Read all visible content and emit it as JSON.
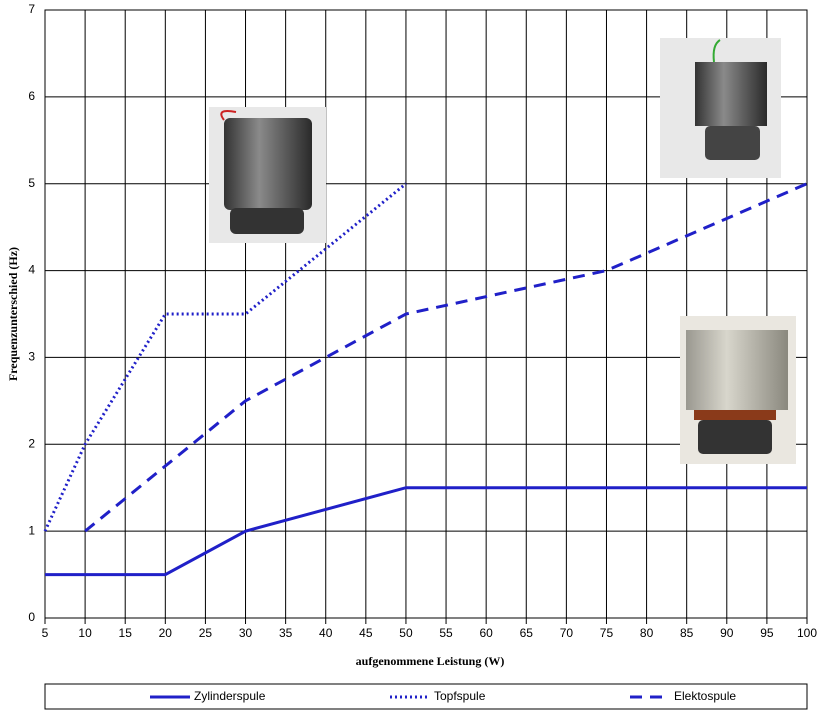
{
  "chart_data": {
    "type": "line",
    "x_label": "aufgenommene Leistung (W)",
    "y_label": "Frequenzunterschied (Hz)",
    "x": [
      5,
      10,
      20,
      30,
      50,
      75,
      100
    ],
    "series": [
      {
        "name": "Zylinderspule",
        "color": "#2020c8",
        "style": "solid",
        "values": [
          0.5,
          0.5,
          0.5,
          1,
          1.5,
          1.5,
          1.5
        ]
      },
      {
        "name": "Topfspule",
        "color": "#2020c8",
        "style": "dotted",
        "values": [
          1,
          2,
          3.5,
          3.5,
          5,
          null,
          null
        ]
      },
      {
        "name": "Elektospule",
        "color": "#2020c8",
        "style": "dashed",
        "values": [
          null,
          1,
          1.75,
          2.5,
          3.5,
          4,
          5
        ]
      }
    ],
    "xlim": [
      5,
      100
    ],
    "ylim": [
      0,
      7
    ],
    "xticks": [
      5,
      10,
      15,
      20,
      25,
      30,
      35,
      40,
      45,
      50,
      55,
      60,
      65,
      70,
      75,
      80,
      85,
      90,
      95,
      100
    ],
    "yticks": [
      0,
      1,
      2,
      3,
      4,
      5,
      6,
      7
    ],
    "grid": true,
    "legend": "bottom"
  }
}
